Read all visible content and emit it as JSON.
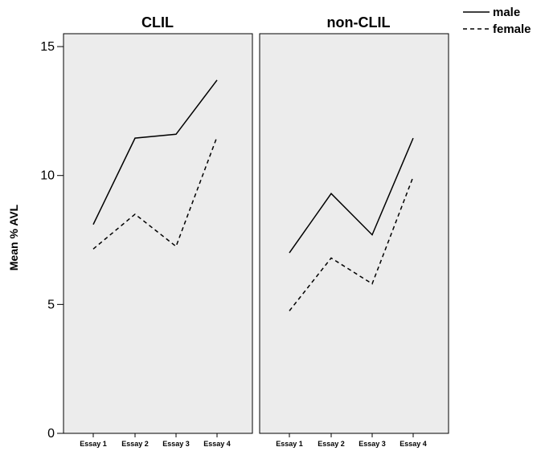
{
  "chart_data": {
    "type": "line",
    "ylabel": "Mean % AVL",
    "ylim": [
      0,
      15.5
    ],
    "yticks": [
      0,
      5,
      10,
      15
    ],
    "categories": [
      "Essay 1",
      "Essay 2",
      "Essay 3",
      "Essay 4"
    ],
    "legend": {
      "position": "top-right",
      "entries": [
        "male",
        "female"
      ]
    },
    "panels": [
      {
        "title": "CLIL",
        "series": [
          {
            "name": "male",
            "style": "solid",
            "values": [
              8.1,
              11.45,
              11.6,
              13.7
            ]
          },
          {
            "name": "female",
            "style": "dashed",
            "values": [
              7.15,
              8.5,
              7.25,
              11.5
            ]
          }
        ]
      },
      {
        "title": "non-CLIL",
        "series": [
          {
            "name": "male",
            "style": "solid",
            "values": [
              7.0,
              9.3,
              7.7,
              11.45
            ]
          },
          {
            "name": "female",
            "style": "dashed",
            "values": [
              4.75,
              6.8,
              5.8,
              9.95
            ]
          }
        ]
      }
    ],
    "colors": {
      "panel_bg": "#ececec",
      "line": "#000000"
    },
    "grid": false
  }
}
